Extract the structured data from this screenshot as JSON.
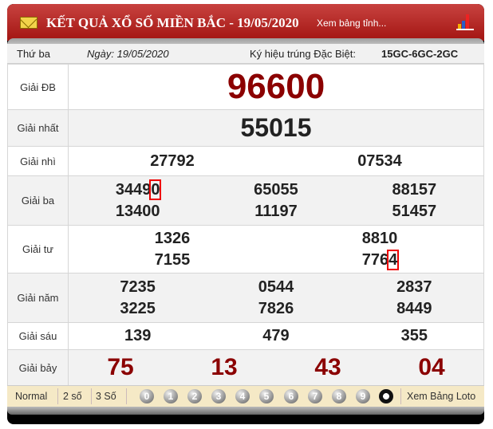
{
  "header": {
    "title": "KẾT QUẢ XỔ SỐ MIỀN BẮC - 19/05/2020",
    "link": "Xem bảng tỉnh...",
    "accent": "#a31512"
  },
  "info": {
    "day": "Thứ ba",
    "date": "Ngày: 19/05/2020",
    "code_label": "Ký hiệu trúng Đặc Biệt:",
    "code": "15GC-6GC-2GC"
  },
  "prizes": {
    "db": {
      "label": "Giải ĐB",
      "numbers": [
        "96600"
      ]
    },
    "nhat": {
      "label": "Giải nhất",
      "numbers": [
        "55015"
      ]
    },
    "nhi": {
      "label": "Giải nhì",
      "numbers": [
        "27792",
        "07534"
      ]
    },
    "ba": {
      "label": "Giải ba",
      "numbers": [
        "3449",
        "0",
        "65055",
        "88157",
        "13400",
        "11197",
        "51457"
      ]
    },
    "tu": {
      "label": "Giải tư",
      "numbers": [
        "1326",
        "8810",
        "7155",
        "776",
        "4"
      ]
    },
    "nam": {
      "label": "Giải năm",
      "numbers": [
        "7235",
        "0544",
        "2837",
        "3225",
        "7826",
        "8449"
      ]
    },
    "sau": {
      "label": "Giải sáu",
      "numbers": [
        "139",
        "479",
        "355"
      ]
    },
    "bay": {
      "label": "Giải bảy",
      "numbers": [
        "75",
        "13",
        "43",
        "04"
      ]
    }
  },
  "footer": {
    "modes": [
      "Normal",
      "2 số",
      "3 Số"
    ],
    "digits": [
      "0",
      "1",
      "2",
      "3",
      "4",
      "5",
      "6",
      "7",
      "8",
      "9"
    ],
    "loto": "Xem Bảng Loto"
  }
}
